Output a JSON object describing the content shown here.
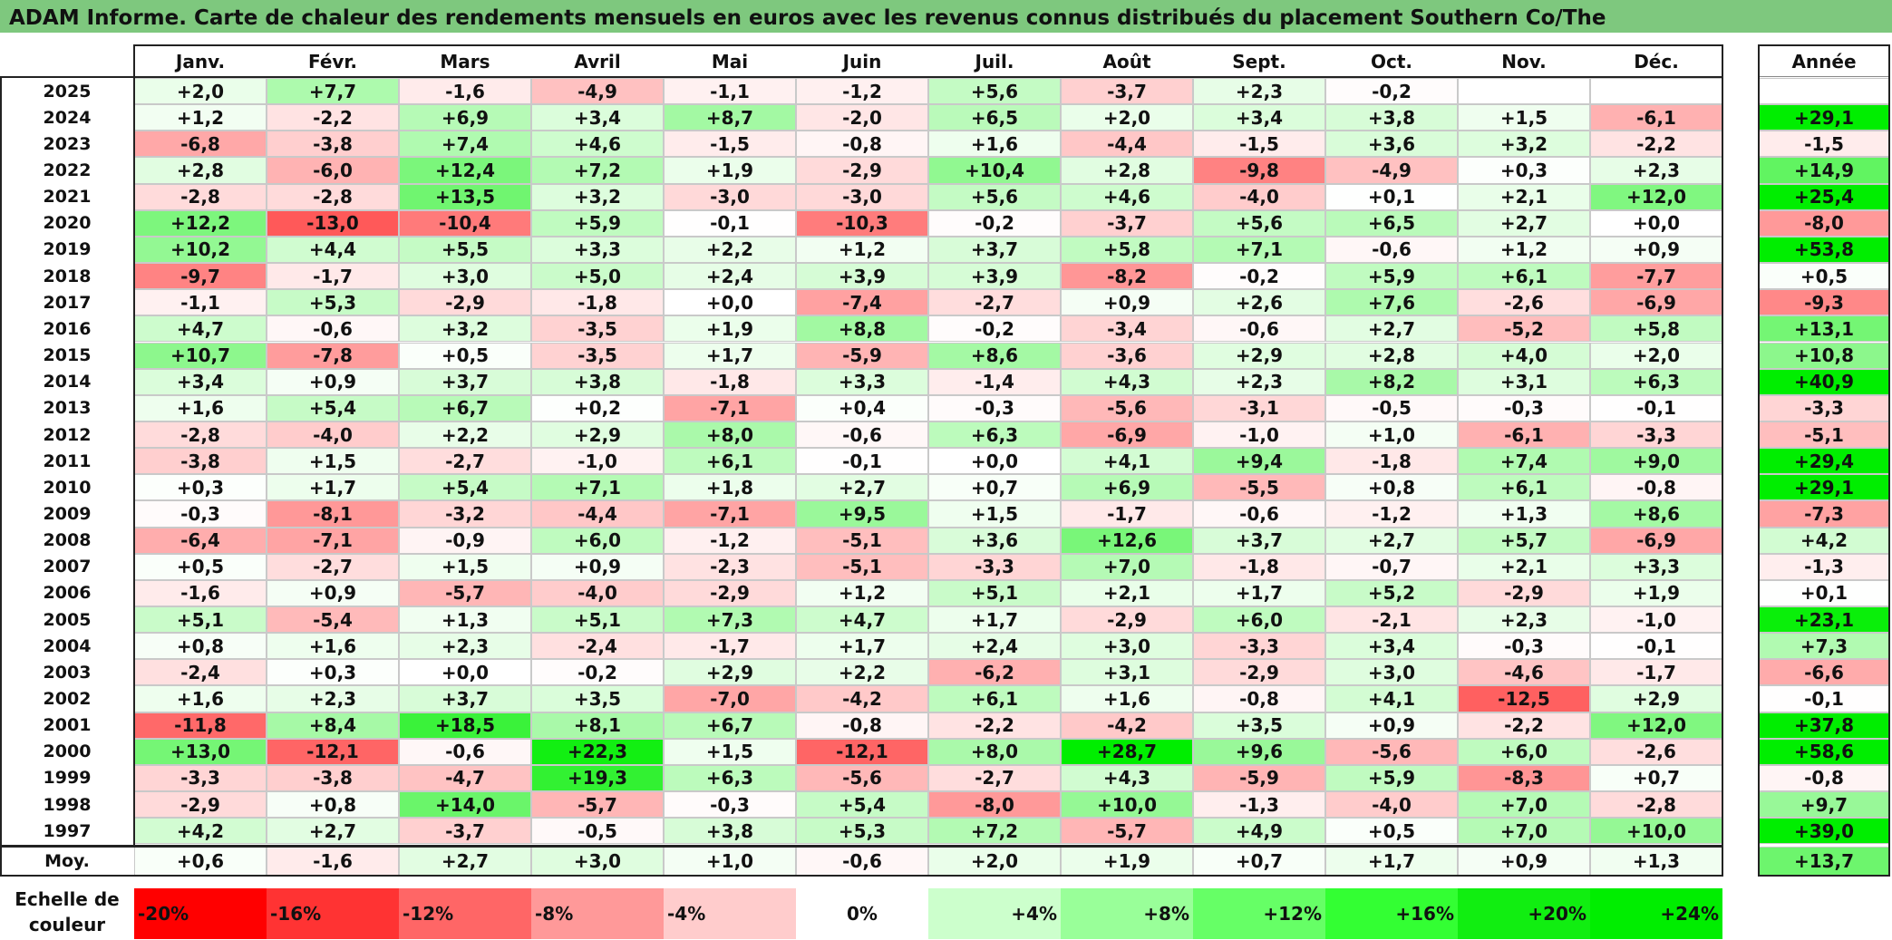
{
  "chart_data": {
    "type": "heatmap",
    "title": "ADAM Informe. Carte de chaleur des rendements mensuels en euros avec les revenus connus distribués du placement Southern Co/The",
    "months": [
      "Janv.",
      "Févr.",
      "Mars",
      "Avril",
      "Mai",
      "Juin",
      "Juil.",
      "Août",
      "Sept.",
      "Oct.",
      "Nov.",
      "Déc."
    ],
    "year_column_label": "Année",
    "rows": [
      {
        "year": "2025",
        "values": [
          "+2,0",
          "+7,7",
          "-1,6",
          "-4,9",
          "-1,1",
          "-1,2",
          "+5,6",
          "-3,7",
          "+2,3",
          "-0,2",
          "",
          ""
        ],
        "annual": ""
      },
      {
        "year": "2024",
        "values": [
          "+1,2",
          "-2,2",
          "+6,9",
          "+3,4",
          "+8,7",
          "-2,0",
          "+6,5",
          "+2,0",
          "+3,4",
          "+3,8",
          "+1,5",
          "-6,1"
        ],
        "annual": "+29,1"
      },
      {
        "year": "2023",
        "values": [
          "-6,8",
          "-3,8",
          "+7,4",
          "+4,6",
          "-1,5",
          "-0,8",
          "+1,6",
          "-4,4",
          "-1,5",
          "+3,6",
          "+3,2",
          "-2,2"
        ],
        "annual": "-1,5"
      },
      {
        "year": "2022",
        "values": [
          "+2,8",
          "-6,0",
          "+12,4",
          "+7,2",
          "+1,9",
          "-2,9",
          "+10,4",
          "+2,8",
          "-9,8",
          "-4,9",
          "+0,3",
          "+2,3"
        ],
        "annual": "+14,9"
      },
      {
        "year": "2021",
        "values": [
          "-2,8",
          "-2,8",
          "+13,5",
          "+3,2",
          "-3,0",
          "-3,0",
          "+5,6",
          "+4,6",
          "-4,0",
          "+0,1",
          "+2,1",
          "+12,0"
        ],
        "annual": "+25,4"
      },
      {
        "year": "2020",
        "values": [
          "+12,2",
          "-13,0",
          "-10,4",
          "+5,9",
          "-0,1",
          "-10,3",
          "-0,2",
          "-3,7",
          "+5,6",
          "+6,5",
          "+2,7",
          "+0,0"
        ],
        "annual": "-8,0"
      },
      {
        "year": "2019",
        "values": [
          "+10,2",
          "+4,4",
          "+5,5",
          "+3,3",
          "+2,2",
          "+1,2",
          "+3,7",
          "+5,8",
          "+7,1",
          "-0,6",
          "+1,2",
          "+0,9"
        ],
        "annual": "+53,8"
      },
      {
        "year": "2018",
        "values": [
          "-9,7",
          "-1,7",
          "+3,0",
          "+5,0",
          "+2,4",
          "+3,9",
          "+3,9",
          "-8,2",
          "-0,2",
          "+5,9",
          "+6,1",
          "-7,7"
        ],
        "annual": "+0,5"
      },
      {
        "year": "2017",
        "values": [
          "-1,1",
          "+5,3",
          "-2,9",
          "-1,8",
          "+0,0",
          "-7,4",
          "-2,7",
          "+0,9",
          "+2,6",
          "+7,6",
          "-2,6",
          "-6,9"
        ],
        "annual": "-9,3"
      },
      {
        "year": "2016",
        "values": [
          "+4,7",
          "-0,6",
          "+3,2",
          "-3,5",
          "+1,9",
          "+8,8",
          "-0,2",
          "-3,4",
          "-0,6",
          "+2,7",
          "-5,2",
          "+5,8"
        ],
        "annual": "+13,1"
      },
      {
        "year": "2015",
        "values": [
          "+10,7",
          "-7,8",
          "+0,5",
          "-3,5",
          "+1,7",
          "-5,9",
          "+8,6",
          "-3,6",
          "+2,9",
          "+2,8",
          "+4,0",
          "+2,0"
        ],
        "annual": "+10,8"
      },
      {
        "year": "2014",
        "values": [
          "+3,4",
          "+0,9",
          "+3,7",
          "+3,8",
          "-1,8",
          "+3,3",
          "-1,4",
          "+4,3",
          "+2,3",
          "+8,2",
          "+3,1",
          "+6,3"
        ],
        "annual": "+40,9"
      },
      {
        "year": "2013",
        "values": [
          "+1,6",
          "+5,4",
          "+6,7",
          "+0,2",
          "-7,1",
          "+0,4",
          "-0,3",
          "-5,6",
          "-3,1",
          "-0,5",
          "-0,3",
          "-0,1"
        ],
        "annual": "-3,3"
      },
      {
        "year": "2012",
        "values": [
          "-2,8",
          "-4,0",
          "+2,2",
          "+2,9",
          "+8,0",
          "-0,6",
          "+6,3",
          "-6,9",
          "-1,0",
          "+1,0",
          "-6,1",
          "-3,3"
        ],
        "annual": "-5,1"
      },
      {
        "year": "2011",
        "values": [
          "-3,8",
          "+1,5",
          "-2,7",
          "-1,0",
          "+6,1",
          "-0,1",
          "+0,0",
          "+4,1",
          "+9,4",
          "-1,8",
          "+7,4",
          "+9,0"
        ],
        "annual": "+29,4"
      },
      {
        "year": "2010",
        "values": [
          "+0,3",
          "+1,7",
          "+5,4",
          "+7,1",
          "+1,8",
          "+2,7",
          "+0,7",
          "+6,9",
          "-5,5",
          "+0,8",
          "+6,1",
          "-0,8"
        ],
        "annual": "+29,1"
      },
      {
        "year": "2009",
        "values": [
          "-0,3",
          "-8,1",
          "-3,2",
          "-4,4",
          "-7,1",
          "+9,5",
          "+1,5",
          "-1,7",
          "-0,6",
          "-1,2",
          "+1,3",
          "+8,6"
        ],
        "annual": "-7,3"
      },
      {
        "year": "2008",
        "values": [
          "-6,4",
          "-7,1",
          "-0,9",
          "+6,0",
          "-1,2",
          "-5,1",
          "+3,6",
          "+12,6",
          "+3,7",
          "+2,7",
          "+5,7",
          "-6,9"
        ],
        "annual": "+4,2"
      },
      {
        "year": "2007",
        "values": [
          "+0,5",
          "-2,7",
          "+1,5",
          "+0,9",
          "-2,3",
          "-5,1",
          "-3,3",
          "+7,0",
          "-1,8",
          "-0,7",
          "+2,1",
          "+3,3"
        ],
        "annual": "-1,3"
      },
      {
        "year": "2006",
        "values": [
          "-1,6",
          "+0,9",
          "-5,7",
          "-4,0",
          "-2,9",
          "+1,2",
          "+5,1",
          "+2,1",
          "+1,7",
          "+5,2",
          "-2,9",
          "+1,9"
        ],
        "annual": "+0,1"
      },
      {
        "year": "2005",
        "values": [
          "+5,1",
          "-5,4",
          "+1,3",
          "+5,1",
          "+7,3",
          "+4,7",
          "+1,7",
          "-2,9",
          "+6,0",
          "-2,1",
          "+2,3",
          "-1,0"
        ],
        "annual": "+23,1"
      },
      {
        "year": "2004",
        "values": [
          "+0,8",
          "+1,6",
          "+2,3",
          "-2,4",
          "-1,7",
          "+1,7",
          "+2,4",
          "+3,0",
          "-3,3",
          "+3,4",
          "-0,3",
          "-0,1"
        ],
        "annual": "+7,3"
      },
      {
        "year": "2003",
        "values": [
          "-2,4",
          "+0,3",
          "+0,0",
          "-0,2",
          "+2,9",
          "+2,2",
          "-6,2",
          "+3,1",
          "-2,9",
          "+3,0",
          "-4,6",
          "-1,7"
        ],
        "annual": "-6,6"
      },
      {
        "year": "2002",
        "values": [
          "+1,6",
          "+2,3",
          "+3,7",
          "+3,5",
          "-7,0",
          "-4,2",
          "+6,1",
          "+1,6",
          "-0,8",
          "+4,1",
          "-12,5",
          "+2,9"
        ],
        "annual": "-0,1"
      },
      {
        "year": "2001",
        "values": [
          "-11,8",
          "+8,4",
          "+18,5",
          "+8,1",
          "+6,7",
          "-0,8",
          "-2,2",
          "-4,2",
          "+3,5",
          "+0,9",
          "-2,2",
          "+12,0"
        ],
        "annual": "+37,8"
      },
      {
        "year": "2000",
        "values": [
          "+13,0",
          "-12,1",
          "-0,6",
          "+22,3",
          "+1,5",
          "-12,1",
          "+8,0",
          "+28,7",
          "+9,6",
          "-5,6",
          "+6,0",
          "-2,6"
        ],
        "annual": "+58,6"
      },
      {
        "year": "1999",
        "values": [
          "-3,3",
          "-3,8",
          "-4,7",
          "+19,3",
          "+6,3",
          "-5,6",
          "-2,7",
          "+4,3",
          "-5,9",
          "+5,9",
          "-8,3",
          "+0,7"
        ],
        "annual": "-0,8"
      },
      {
        "year": "1998",
        "values": [
          "-2,9",
          "+0,8",
          "+14,0",
          "-5,7",
          "-0,3",
          "+5,4",
          "-8,0",
          "+10,0",
          "-1,3",
          "-4,0",
          "+7,0",
          "-2,8"
        ],
        "annual": "+9,7"
      },
      {
        "year": "1997",
        "values": [
          "+4,2",
          "+2,7",
          "-3,7",
          "-0,5",
          "+3,8",
          "+5,3",
          "+7,2",
          "-5,7",
          "+4,9",
          "+0,5",
          "+7,0",
          "+10,0"
        ],
        "annual": "+39,0"
      }
    ],
    "average": {
      "label": "Moy.",
      "values": [
        "+0,6",
        "-1,6",
        "+2,7",
        "+3,0",
        "+1,0",
        "-0,6",
        "+2,0",
        "+1,9",
        "+0,7",
        "+1,7",
        "+0,9",
        "+1,3"
      ],
      "annual": "+13,7"
    },
    "color_scale": {
      "label": "Echelle de couleur",
      "steps": [
        {
          "label": "-20%",
          "value": -20,
          "color": "#ff0000"
        },
        {
          "label": "-16%",
          "value": -16,
          "color": "#ff3333"
        },
        {
          "label": "-12%",
          "value": -12,
          "color": "#ff6666"
        },
        {
          "label": "-8%",
          "value": -8,
          "color": "#ff9999"
        },
        {
          "label": "-4%",
          "value": -4,
          "color": "#ffcccc"
        },
        {
          "label": "0%",
          "value": 0,
          "color": "#ffffff"
        },
        {
          "label": "+4%",
          "value": 4,
          "color": "#ccffcc"
        },
        {
          "label": "+8%",
          "value": 8,
          "color": "#99ff99"
        },
        {
          "label": "+12%",
          "value": 12,
          "color": "#66ff66"
        },
        {
          "label": "+16%",
          "value": 16,
          "color": "#33ff33"
        },
        {
          "label": "+20%",
          "value": 20,
          "color": "#11ee11"
        },
        {
          "label": "+24%",
          "value": 24,
          "color": "#00ee00"
        }
      ]
    },
    "colors": {
      "title_bar": "#7ec87e",
      "negative_max": "#ff0000",
      "neutral": "#ffffff",
      "positive_max": "#00ee00"
    }
  }
}
